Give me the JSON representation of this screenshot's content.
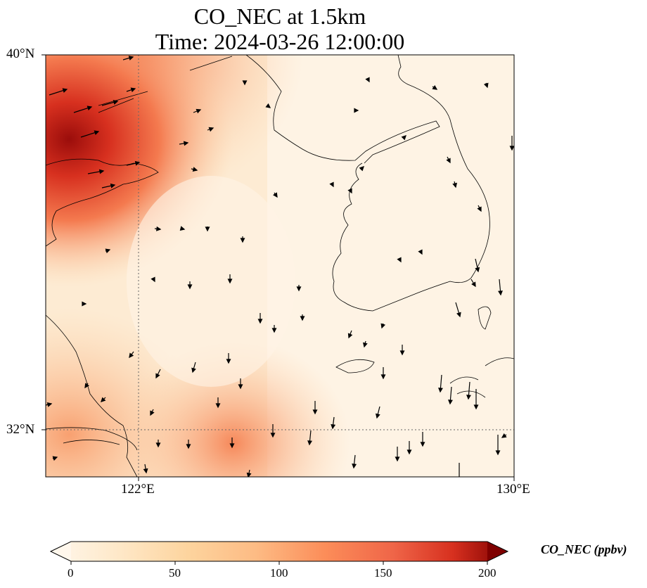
{
  "title": {
    "line1": "CO_NEC at 1.5km",
    "line2": "Time: 2024-03-26 12:00:00"
  },
  "axes": {
    "y_ticks": [
      "40°N",
      "32°N"
    ],
    "x_ticks": [
      "122°E",
      "130°E"
    ]
  },
  "colorbar": {
    "label": "CO_NEC (ppbv)",
    "ticks": [
      "0",
      "50",
      "100",
      "150",
      "200"
    ],
    "range": [
      0,
      200
    ],
    "extend": "both",
    "colormap": "OrRd"
  },
  "colors": {
    "low": "#fff7ec",
    "mid": "#fdbb84",
    "high": "#d7301f",
    "max": "#7f0000"
  }
}
